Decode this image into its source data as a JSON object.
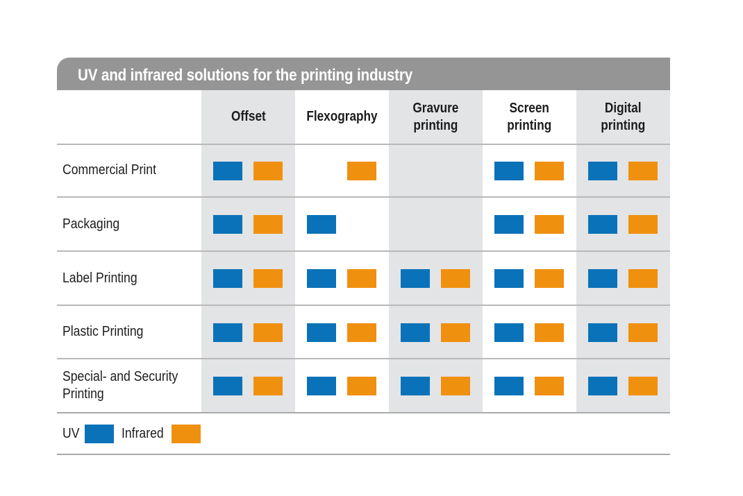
{
  "colors": {
    "uv": "#0a72b8",
    "infrared": "#f0900f",
    "title_bg": "#959595",
    "shade": "#e3e4e6"
  },
  "chart_data": {
    "type": "table",
    "title": "UV and infrared solutions for the printing industry",
    "columns": [
      "Offset",
      "Flexography",
      "Gravure\nprinting",
      "Screen\nprinting",
      "Digital\nprinting"
    ],
    "rows": [
      {
        "label": "Commercial Print",
        "cells": [
          [
            "uv",
            "ir"
          ],
          [
            "ir"
          ],
          [],
          [
            "uv",
            "ir"
          ],
          [
            "uv",
            "ir"
          ]
        ]
      },
      {
        "label": "Packaging",
        "cells": [
          [
            "uv",
            "ir"
          ],
          [
            "uv"
          ],
          [],
          [
            "uv",
            "ir"
          ],
          [
            "uv",
            "ir"
          ]
        ]
      },
      {
        "label": "Label Printing",
        "cells": [
          [
            "uv",
            "ir"
          ],
          [
            "uv",
            "ir"
          ],
          [
            "uv",
            "ir"
          ],
          [
            "uv",
            "ir"
          ],
          [
            "uv",
            "ir"
          ]
        ]
      },
      {
        "label": "Plastic Printing",
        "cells": [
          [
            "uv",
            "ir"
          ],
          [
            "uv",
            "ir"
          ],
          [
            "uv",
            "ir"
          ],
          [
            "uv",
            "ir"
          ],
          [
            "uv",
            "ir"
          ]
        ]
      },
      {
        "label": "Special- and Security\nPrinting",
        "cells": [
          [
            "uv",
            "ir"
          ],
          [
            "uv",
            "ir"
          ],
          [
            "uv",
            "ir"
          ],
          [
            "uv",
            "ir"
          ],
          [
            "uv",
            "ir"
          ]
        ]
      }
    ],
    "legend": [
      {
        "key": "uv",
        "label": "UV"
      },
      {
        "key": "ir",
        "label": "Infrared"
      }
    ]
  }
}
